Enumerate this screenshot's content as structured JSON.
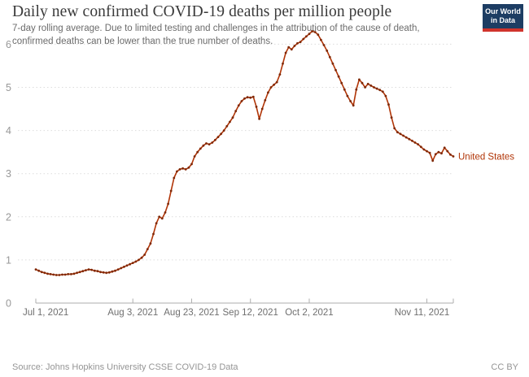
{
  "header": {
    "title": "Daily new confirmed COVID-19 deaths per million people",
    "subtitle": "7-day rolling average. Due to limited testing and challenges in the attribution of the cause of death, confirmed deaths can be lower than the true number of deaths.",
    "logo": {
      "line1": "Our World",
      "line2": "in Data"
    }
  },
  "footer": {
    "source": "Source: Johns Hopkins University CSSE COVID-19 Data",
    "license": "CC BY"
  },
  "colors": {
    "line": "#b13507",
    "marker": "#7e2807",
    "annotation": "#b13507",
    "grid": "#dcdcdc",
    "axis": "#aeaeae",
    "x_tick_label": "#6f6f6f",
    "y_tick_label": "#989898",
    "logo_bg": "#1d3d63",
    "logo_stripe": "#d0342c"
  },
  "chart_data": {
    "type": "line",
    "title": "Daily new confirmed COVID-19 deaths per million people",
    "xlabel": "",
    "ylabel": "",
    "ylim": [
      0,
      6.5
    ],
    "grid": "dotted-horizontal",
    "legend_position": "end-of-line-annotation",
    "y_ticks": [
      0,
      1,
      2,
      3,
      4,
      5,
      6
    ],
    "x_ticks": [
      {
        "label": "Jul 1, 2021",
        "day": 0
      },
      {
        "label": "Aug 3, 2021",
        "day": 33
      },
      {
        "label": "Aug 23, 2021",
        "day": 53
      },
      {
        "label": "Sep 12, 2021",
        "day": 73
      },
      {
        "label": "Oct 2, 2021",
        "day": 93
      },
      {
        "label": "Nov 11, 2021",
        "day": 133
      }
    ],
    "series": [
      {
        "name": "United States",
        "start_date": "2021-07-01",
        "end_date": "2021-11-20",
        "cadence": "daily",
        "unit": "deaths per million (7-day rolling average)",
        "values": [
          0.78,
          0.75,
          0.72,
          0.7,
          0.68,
          0.67,
          0.66,
          0.65,
          0.65,
          0.66,
          0.66,
          0.67,
          0.67,
          0.68,
          0.7,
          0.72,
          0.74,
          0.76,
          0.78,
          0.77,
          0.75,
          0.74,
          0.72,
          0.71,
          0.7,
          0.71,
          0.73,
          0.75,
          0.78,
          0.81,
          0.84,
          0.87,
          0.9,
          0.93,
          0.96,
          1.0,
          1.05,
          1.12,
          1.25,
          1.38,
          1.6,
          1.85,
          2.0,
          1.96,
          2.1,
          2.3,
          2.6,
          2.9,
          3.05,
          3.1,
          3.12,
          3.1,
          3.14,
          3.22,
          3.4,
          3.5,
          3.58,
          3.65,
          3.7,
          3.68,
          3.72,
          3.78,
          3.85,
          3.92,
          4.0,
          4.1,
          4.2,
          4.3,
          4.45,
          4.58,
          4.68,
          4.74,
          4.77,
          4.76,
          4.78,
          4.55,
          4.27,
          4.5,
          4.7,
          4.88,
          5.0,
          5.06,
          5.12,
          5.3,
          5.55,
          5.8,
          5.93,
          5.88,
          5.96,
          6.02,
          6.05,
          6.12,
          6.18,
          6.24,
          6.3,
          6.28,
          6.22,
          6.1,
          5.98,
          5.85,
          5.7,
          5.55,
          5.4,
          5.25,
          5.1,
          4.95,
          4.8,
          4.68,
          4.58,
          4.95,
          5.18,
          5.1,
          5.0,
          5.08,
          5.04,
          5.0,
          4.97,
          4.94,
          4.9,
          4.8,
          4.6,
          4.3,
          4.05,
          3.96,
          3.92,
          3.88,
          3.84,
          3.8,
          3.76,
          3.72,
          3.68,
          3.62,
          3.56,
          3.52,
          3.48,
          3.3,
          3.45,
          3.5,
          3.47,
          3.6,
          3.52,
          3.44,
          3.4
        ]
      }
    ]
  }
}
